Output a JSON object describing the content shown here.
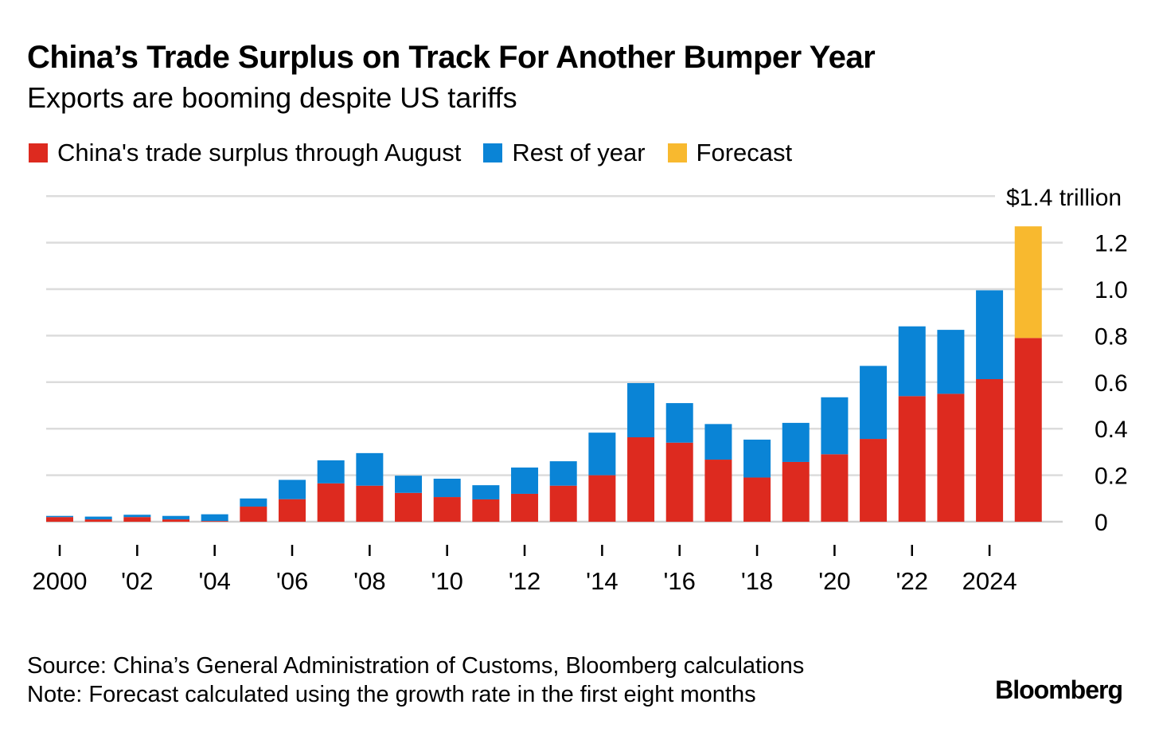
{
  "title": "China’s Trade Surplus on Track For Another Bumper Year",
  "subtitle": "Exports are booming despite US tariffs",
  "source": "Source: China’s General Administration of Customs, Bloomberg calculations",
  "note": "Note: Forecast calculated using the growth rate in the first eight months",
  "brand": "Bloomberg",
  "colors": {
    "red": "#dd2a1f",
    "blue": "#0a84d6",
    "yellow": "#f8b92f"
  },
  "chart_data": {
    "type": "bar",
    "stacked": true,
    "unit_label": "$1.4 trillion",
    "ylim": [
      0,
      1.4
    ],
    "yticks": [
      0,
      0.2,
      0.4,
      0.6,
      0.8,
      1.0,
      1.2
    ],
    "ytick_labels": [
      "0",
      "0.2",
      "0.4",
      "0.6",
      "0.8",
      "1.0",
      "1.2"
    ],
    "grid": true,
    "legend_position": "top-left",
    "years": [
      2000,
      2001,
      2002,
      2003,
      2004,
      2005,
      2006,
      2007,
      2008,
      2009,
      2010,
      2011,
      2012,
      2013,
      2014,
      2015,
      2016,
      2017,
      2018,
      2019,
      2020,
      2021,
      2022,
      2023,
      2024,
      2025
    ],
    "xtick_years": [
      2000,
      2002,
      2004,
      2006,
      2008,
      2010,
      2012,
      2014,
      2016,
      2018,
      2020,
      2022,
      2024
    ],
    "xtick_labels": [
      "2000",
      "'02",
      "'04",
      "'06",
      "'08",
      "'10",
      "'12",
      "'14",
      "'16",
      "'18",
      "'20",
      "'22",
      "2024"
    ],
    "series": [
      {
        "name": "China's trade surplus through August",
        "color_key": "red",
        "values": [
          0.02,
          0.01,
          0.02,
          0.01,
          0.003,
          0.065,
          0.097,
          0.165,
          0.155,
          0.124,
          0.106,
          0.096,
          0.12,
          0.155,
          0.2,
          0.363,
          0.34,
          0.267,
          0.19,
          0.257,
          0.29,
          0.356,
          0.54,
          0.55,
          0.613,
          0.79
        ]
      },
      {
        "name": "Rest of year",
        "color_key": "blue",
        "values": [
          0.005,
          0.012,
          0.01,
          0.015,
          0.029,
          0.035,
          0.083,
          0.099,
          0.14,
          0.074,
          0.079,
          0.061,
          0.113,
          0.105,
          0.183,
          0.233,
          0.17,
          0.153,
          0.163,
          0.168,
          0.245,
          0.314,
          0.3,
          0.275,
          0.382,
          0
        ]
      },
      {
        "name": "Forecast",
        "color_key": "yellow",
        "values": [
          0,
          0,
          0,
          0,
          0,
          0,
          0,
          0,
          0,
          0,
          0,
          0,
          0,
          0,
          0,
          0,
          0,
          0,
          0,
          0,
          0,
          0,
          0,
          0,
          0,
          0.48
        ]
      }
    ]
  }
}
